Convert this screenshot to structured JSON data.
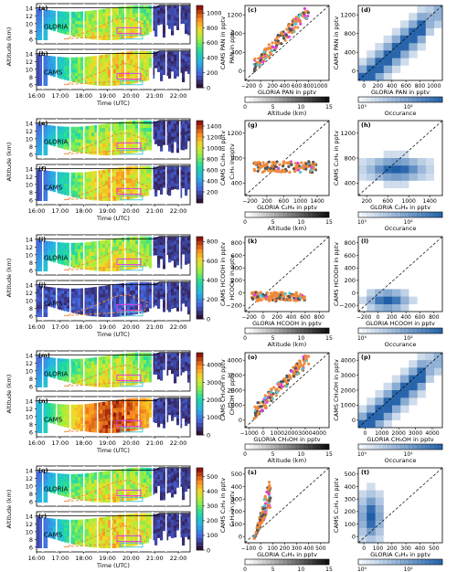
{
  "figure": {
    "rows": [
      {
        "species_cbar_label": "PAN in pptv",
        "cbar_ticks": [
          "0",
          "200",
          "400",
          "600",
          "800",
          "1000"
        ],
        "cbar_max": 1100,
        "panels": {
          "gloria": {
            "letter": "(a)",
            "label": "GLORIA"
          },
          "cams": {
            "letter": "(b)",
            "label": "CAMS"
          },
          "scatter": {
            "letter": "(c)",
            "xlabel": "GLORIA PAN in pptv",
            "ylabel": "CAMS PAN in pptv",
            "xticks": [
              "−200",
              "0",
              "200",
              "400",
              "600",
              "800",
              "1000"
            ],
            "yticks": [
              "0",
              "400",
              "800",
              "1200"
            ],
            "cbar_label": "Altitude (km)",
            "cbar_ticks": [
              "0",
              "5",
              "10",
              "15"
            ]
          },
          "hist": {
            "letter": "(d)",
            "xlabel": "GLORIA PAN in pptv",
            "ylabel": "CAMS PAN in pptv",
            "xticks": [
              "0",
              "200",
              "400",
              "600",
              "800",
              "1000"
            ],
            "yticks": [
              "0",
              "400",
              "800",
              "1200"
            ],
            "cbar_label": "Occurance",
            "cbar_ticks": [
              "10⁰",
              "10²"
            ]
          }
        }
      },
      {
        "species_cbar_label": "C₂H₆ in pptv",
        "cbar_ticks": [
          "200",
          "400",
          "600",
          "800",
          "1000",
          "1200",
          "1400"
        ],
        "cbar_max": 1500,
        "panels": {
          "gloria": {
            "letter": "(e)",
            "label": "GLORIA"
          },
          "cams": {
            "letter": "(f)",
            "label": "CAMS"
          },
          "scatter": {
            "letter": "(g)",
            "xlabel": "GLORIA C₂H₆ in pptv",
            "ylabel": "CAMS C₂H₆ in pptv",
            "xticks": [
              "−200",
              "200",
              "600",
              "1000",
              "1400"
            ],
            "yticks": [
              "400",
              "800",
              "1200"
            ],
            "cbar_label": "Altitude (km)",
            "cbar_ticks": [
              "0",
              "5",
              "10",
              "15"
            ]
          },
          "hist": {
            "letter": "(h)",
            "xlabel": "GLORIA C₂H₆ in pptv",
            "ylabel": "CAMS C₂H₆ in pptv",
            "xticks": [
              "200",
              "600",
              "1000",
              "1400"
            ],
            "yticks": [
              "400",
              "800",
              "1200"
            ],
            "cbar_label": "Occurance",
            "cbar_ticks": [
              "10⁰",
              "10²"
            ]
          }
        }
      },
      {
        "species_cbar_label": "HCOOH in pptv",
        "cbar_ticks": [
          "0",
          "200",
          "400",
          "600",
          "800"
        ],
        "cbar_max": 850,
        "panels": {
          "gloria": {
            "letter": "(i)",
            "label": "GLORIA"
          },
          "cams": {
            "letter": "(j)",
            "label": "CAMS"
          },
          "scatter": {
            "letter": "(k)",
            "xlabel": "GLORIA HCOOH in pptv",
            "ylabel": "CAMS HCOOH in pptv",
            "xticks": [
              "−200",
              "0",
              "200",
              "400",
              "600",
              "800"
            ],
            "yticks": [
              "−200",
              "0",
              "200",
              "400",
              "600",
              "800"
            ],
            "cbar_label": "Altitude (km)",
            "cbar_ticks": [
              "0",
              "5",
              "10",
              "15"
            ]
          },
          "hist": {
            "letter": "(l)",
            "xlabel": "GLORIA HCOOH in pptv",
            "ylabel": "CAMS HCOOH in pptv",
            "xticks": [
              "−200",
              "0",
              "200",
              "400",
              "600",
              "800"
            ],
            "yticks": [
              "−200",
              "0",
              "200",
              "400",
              "600",
              "800"
            ],
            "cbar_label": "Occurance",
            "cbar_ticks": [
              "10⁰",
              "10²"
            ]
          }
        }
      },
      {
        "species_cbar_label": "CH₃OH in pptv",
        "cbar_ticks": [
          "0",
          "1000",
          "2000",
          "3000",
          "4000"
        ],
        "cbar_max": 4700,
        "panels": {
          "gloria": {
            "letter": "(m)",
            "label": "GLORIA"
          },
          "cams": {
            "letter": "(n)",
            "label": "CAMS"
          },
          "scatter": {
            "letter": "(o)",
            "xlabel": "GLORIA CH₃OH in pptv",
            "ylabel": "CAMS CH₃OH in pptv",
            "xticks": [
              "−1000",
              "0",
              "1000",
              "2000",
              "3000",
              "4000"
            ],
            "yticks": [
              "0",
              "1000",
              "2000",
              "3000",
              "4000"
            ],
            "cbar_label": "Altitude (km)",
            "cbar_ticks": [
              "0",
              "5",
              "10",
              "15"
            ]
          },
          "hist": {
            "letter": "(p)",
            "xlabel": "GLORIA CH₃OH in pptv",
            "ylabel": "CAMS CH₃OH in pptv",
            "xticks": [
              "0",
              "1000",
              "2000",
              "3000",
              "4000"
            ],
            "yticks": [
              "0",
              "1000",
              "2000",
              "3000",
              "4000"
            ],
            "cbar_label": "Occurance",
            "cbar_ticks": [
              "10⁰",
              "10¹"
            ]
          }
        }
      },
      {
        "species_cbar_label": "C₂H₄ in pptv",
        "cbar_ticks": [
          "0",
          "100",
          "200",
          "300",
          "400",
          "500"
        ],
        "cbar_max": 560,
        "panels": {
          "gloria": {
            "letter": "(q)",
            "label": "GLORIA"
          },
          "cams": {
            "letter": "(r)",
            "label": "CAMS"
          },
          "scatter": {
            "letter": "(s)",
            "xlabel": "GLORIA C₂H₄ in pptv",
            "ylabel": "CAMS C₂H₄ in pptv",
            "xticks": [
              "−100",
              "0",
              "100",
              "200",
              "300",
              "400",
              "500"
            ],
            "yticks": [
              "0",
              "100",
              "200",
              "300",
              "400",
              "500"
            ],
            "cbar_label": "Altitude (km)",
            "cbar_ticks": [
              "0",
              "5",
              "10",
              "15"
            ]
          },
          "hist": {
            "letter": "(t)",
            "xlabel": "GLORIA C₂H₄ in pptv",
            "ylabel": "CAMS C₂H₄ in pptv",
            "xticks": [
              "0",
              "100",
              "200",
              "300",
              "400",
              "500"
            ],
            "yticks": [
              "0",
              "100",
              "200",
              "300",
              "400",
              "500"
            ],
            "cbar_label": "Occurance",
            "cbar_ticks": [
              "10⁰",
              "10²"
            ]
          }
        }
      }
    ],
    "curtain_common": {
      "ylabel": "Altitude (km)",
      "yticks": [
        "6",
        "8",
        "10",
        "12",
        "14"
      ],
      "xticks": [
        "16:00",
        "17:00",
        "18:00",
        "19:00",
        "20:00",
        "21:00",
        "22:00"
      ],
      "xlabel": "Time (UTC)"
    }
  },
  "chart_data": {
    "type": "heatmap",
    "description_panels": [
      "curtain",
      "scatter",
      "2d-histogram"
    ],
    "x_range_time": [
      "16:00",
      "22:30"
    ],
    "y_range_altitude_km": [
      5,
      15
    ],
    "species": [
      "PAN",
      "C₂H₆",
      "HCOOH",
      "CH₃OH",
      "C₂H₄"
    ],
    "datasets": [
      "GLORIA",
      "CAMS"
    ],
    "colors": {
      "scatter_main": "#f08a3a",
      "scatter_grey": "#555555",
      "scatter_magenta": "#e040e0",
      "scatter_cyan": "#50c8d8",
      "hist": "#1f5fa8"
    }
  }
}
